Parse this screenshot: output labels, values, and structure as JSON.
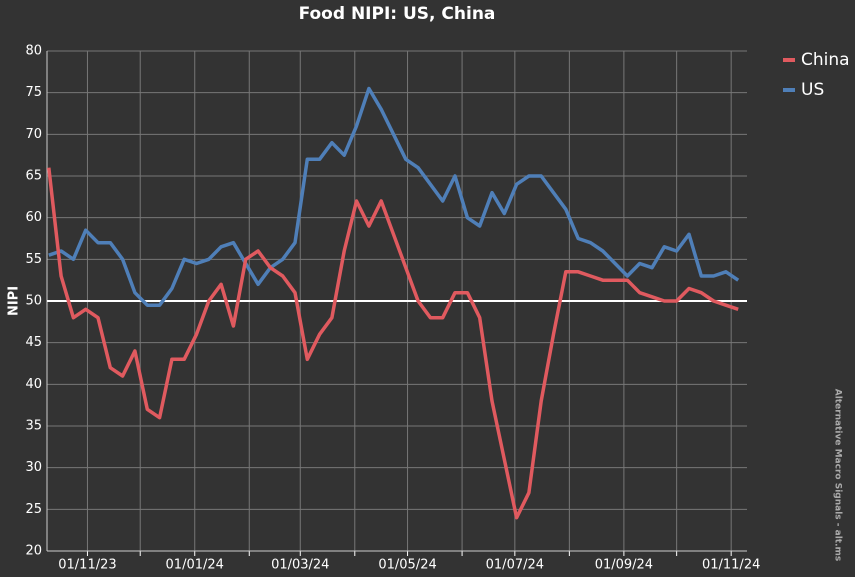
{
  "chart_data": {
    "type": "line",
    "title": "Food NIPI: US, China",
    "y_label": "NIPI",
    "source": "Alternative Macro Signals - alt.ms",
    "x": [
      "2023-10-10",
      "2023-10-17",
      "2023-10-24",
      "2023-10-31",
      "2023-11-07",
      "2023-11-14",
      "2023-11-21",
      "2023-11-28",
      "2023-12-05",
      "2023-12-12",
      "2023-12-19",
      "2023-12-26",
      "2024-01-02",
      "2024-01-09",
      "2024-01-16",
      "2024-01-23",
      "2024-01-30",
      "2024-02-06",
      "2024-02-13",
      "2024-02-20",
      "2024-02-27",
      "2024-03-05",
      "2024-03-12",
      "2024-03-19",
      "2024-03-26",
      "2024-04-02",
      "2024-04-09",
      "2024-04-16",
      "2024-04-23",
      "2024-04-30",
      "2024-05-07",
      "2024-05-14",
      "2024-05-21",
      "2024-05-28",
      "2024-06-04",
      "2024-06-11",
      "2024-06-18",
      "2024-06-25",
      "2024-07-02",
      "2024-07-09",
      "2024-07-16",
      "2024-07-23",
      "2024-07-30",
      "2024-08-06",
      "2024-08-13",
      "2024-08-20",
      "2024-08-27",
      "2024-09-03",
      "2024-09-10",
      "2024-09-17",
      "2024-09-24",
      "2024-10-01",
      "2024-10-08",
      "2024-10-15",
      "2024-10-22",
      "2024-10-29",
      "2024-11-05"
    ],
    "series": [
      {
        "name": "China",
        "color": "#e05a5f",
        "values": [
          66,
          53,
          48,
          49,
          48,
          42,
          41,
          44,
          37,
          36,
          43,
          43,
          46,
          50,
          52,
          47,
          55,
          56,
          54,
          53,
          51,
          43,
          46,
          48,
          56,
          62,
          59,
          62,
          58,
          54,
          50,
          48,
          48,
          51,
          51,
          48,
          38,
          31,
          24,
          27,
          38,
          46,
          53.5,
          53.5,
          53,
          52.5,
          52.5,
          52.5,
          51,
          50.5,
          50,
          50,
          51.5,
          51,
          50,
          49.5,
          49
        ]
      },
      {
        "name": "US",
        "color": "#4f7fb8",
        "values": [
          55.5,
          56,
          55,
          58.5,
          57,
          57,
          55,
          51,
          49.5,
          49.5,
          51.5,
          55,
          54.5,
          55,
          56.5,
          57,
          54.5,
          52,
          54,
          55,
          57,
          67,
          67,
          69,
          67.5,
          71,
          75.5,
          73,
          70,
          67,
          66,
          64,
          62,
          65,
          60,
          59,
          63,
          60.5,
          64,
          65,
          65,
          63,
          61,
          57.5,
          57,
          56,
          54.5,
          53,
          54.5,
          54,
          56.5,
          56,
          58,
          53,
          53,
          53.5,
          52.5
        ]
      }
    ],
    "xlim": [
      "2023-10-09",
      "2024-11-10"
    ],
    "xticks": [
      {
        "value": "2023-11-01",
        "label": "01/11/23"
      },
      {
        "value": "2024-01-01",
        "label": "01/01/24"
      },
      {
        "value": "2024-03-01",
        "label": "01/03/24"
      },
      {
        "value": "2024-05-01",
        "label": "01/05/24"
      },
      {
        "value": "2024-07-01",
        "label": "01/07/24"
      },
      {
        "value": "2024-09-01",
        "label": "01/09/24"
      },
      {
        "value": "2024-11-01",
        "label": "01/11/24"
      }
    ],
    "xgrid_minor": [
      "2023-12-01",
      "2024-02-01",
      "2024-04-01",
      "2024-06-01",
      "2024-08-01",
      "2024-10-01"
    ],
    "ylim": [
      20,
      80
    ],
    "yticks": [
      20,
      25,
      30,
      35,
      40,
      45,
      50,
      55,
      60,
      65,
      70,
      75,
      80
    ],
    "hline": 50,
    "grid": true,
    "legend": "right"
  }
}
